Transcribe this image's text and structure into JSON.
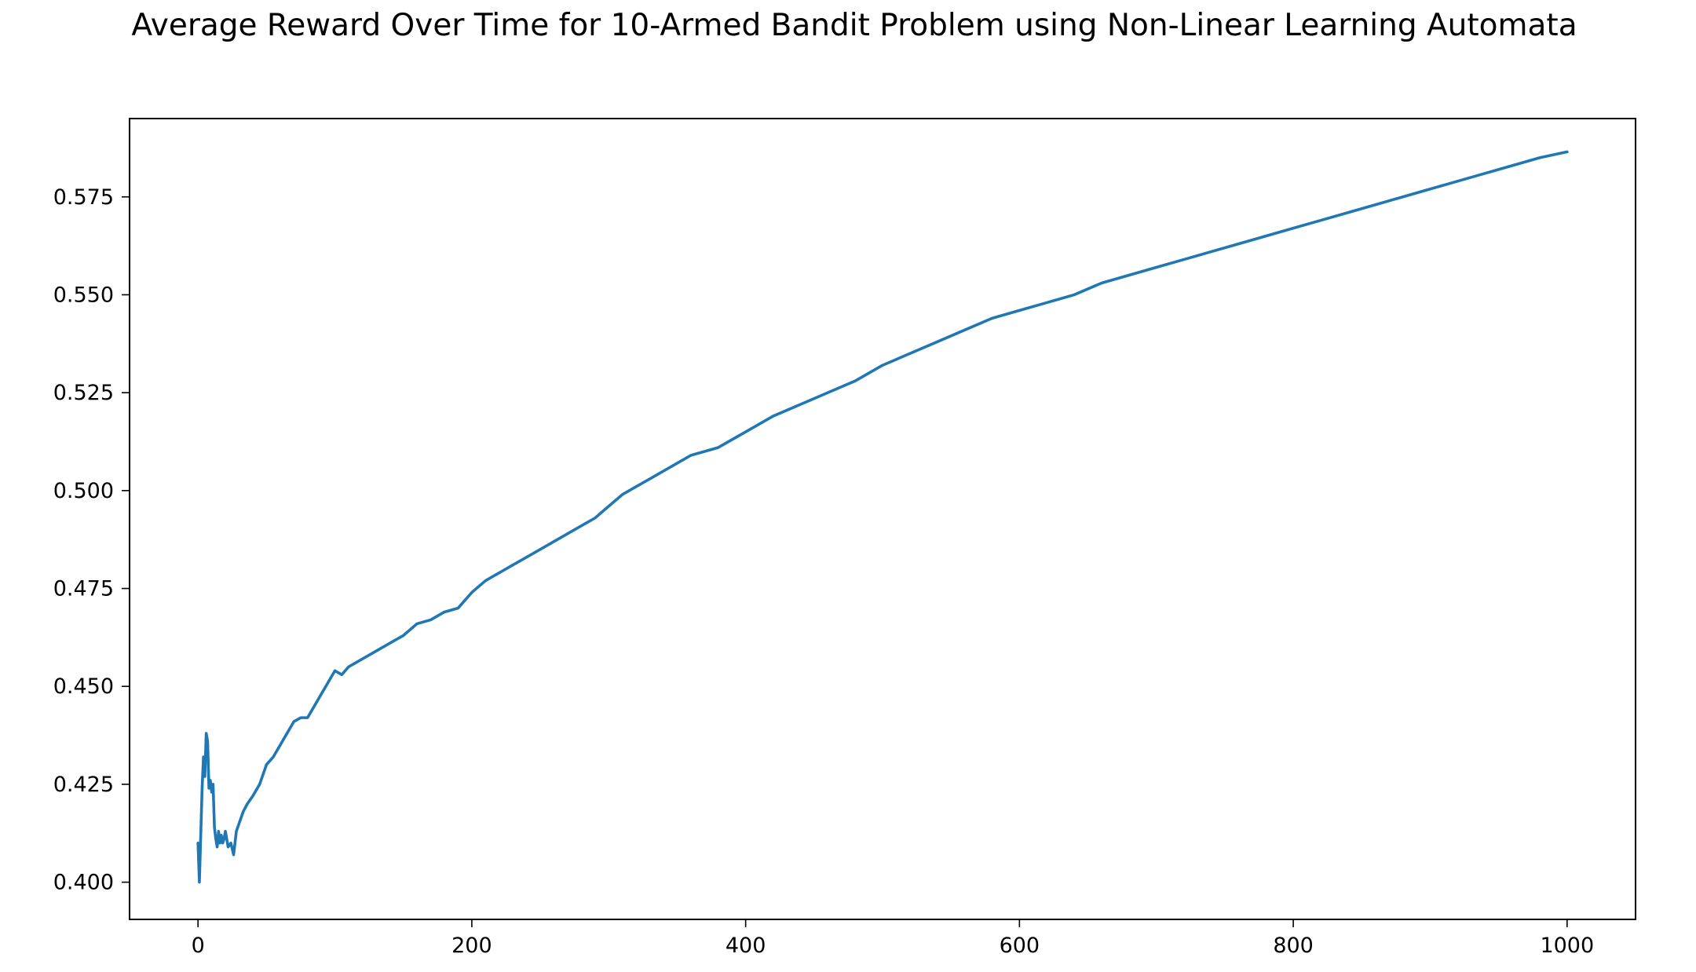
{
  "chart_data": {
    "type": "line",
    "title": "Average Reward Over Time for 10-Armed Bandit Problem using Non-Linear Learning Automata",
    "xlabel": "",
    "ylabel": "",
    "xlim": [
      -50,
      1050
    ],
    "ylim": [
      0.3905,
      0.595
    ],
    "xticks": [
      0,
      200,
      400,
      600,
      800,
      1000
    ],
    "xtick_labels": [
      "0",
      "200",
      "400",
      "600",
      "800",
      "1000"
    ],
    "yticks": [
      0.4,
      0.425,
      0.45,
      0.475,
      0.5,
      0.525,
      0.55,
      0.575
    ],
    "ytick_labels": [
      "0.400",
      "0.425",
      "0.450",
      "0.475",
      "0.500",
      "0.525",
      "0.550",
      "0.575"
    ],
    "grid": false,
    "legend": "none",
    "line_color": "#1f77b4",
    "series": [
      {
        "x": [
          0,
          1,
          2,
          3,
          4,
          5,
          6,
          7,
          8,
          9,
          10,
          11,
          12,
          13,
          14,
          15,
          16,
          17,
          18,
          19,
          20,
          22,
          24,
          26,
          28,
          30,
          33,
          36,
          40,
          45,
          50,
          55,
          60,
          65,
          70,
          75,
          80,
          85,
          90,
          95,
          100,
          105,
          110,
          120,
          130,
          140,
          150,
          160,
          170,
          180,
          190,
          200,
          210,
          220,
          230,
          240,
          250,
          260,
          270,
          280,
          290,
          300,
          310,
          320,
          330,
          340,
          350,
          360,
          370,
          380,
          390,
          400,
          420,
          440,
          460,
          480,
          500,
          520,
          540,
          560,
          580,
          600,
          620,
          640,
          660,
          680,
          700,
          720,
          740,
          760,
          780,
          800,
          820,
          840,
          860,
          880,
          900,
          920,
          940,
          960,
          980,
          1000
        ],
        "y": [
          0.41,
          0.4,
          0.412,
          0.424,
          0.432,
          0.427,
          0.438,
          0.436,
          0.424,
          0.426,
          0.423,
          0.425,
          0.414,
          0.411,
          0.409,
          0.413,
          0.41,
          0.412,
          0.41,
          0.411,
          0.413,
          0.409,
          0.41,
          0.407,
          0.413,
          0.415,
          0.418,
          0.42,
          0.422,
          0.425,
          0.43,
          0.432,
          0.435,
          0.438,
          0.441,
          0.442,
          0.442,
          0.445,
          0.448,
          0.451,
          0.454,
          0.453,
          0.455,
          0.457,
          0.459,
          0.461,
          0.463,
          0.466,
          0.467,
          0.469,
          0.47,
          0.474,
          0.477,
          0.479,
          0.481,
          0.483,
          0.485,
          0.487,
          0.489,
          0.491,
          0.493,
          0.496,
          0.499,
          0.501,
          0.503,
          0.505,
          0.507,
          0.509,
          0.51,
          0.511,
          0.513,
          0.515,
          0.519,
          0.522,
          0.525,
          0.528,
          0.532,
          0.535,
          0.538,
          0.541,
          0.544,
          0.546,
          0.548,
          0.55,
          0.553,
          0.555,
          0.557,
          0.559,
          0.561,
          0.563,
          0.565,
          0.567,
          0.569,
          0.571,
          0.573,
          0.575,
          0.577,
          0.579,
          0.581,
          0.583,
          0.585,
          0.5865
        ]
      }
    ]
  }
}
